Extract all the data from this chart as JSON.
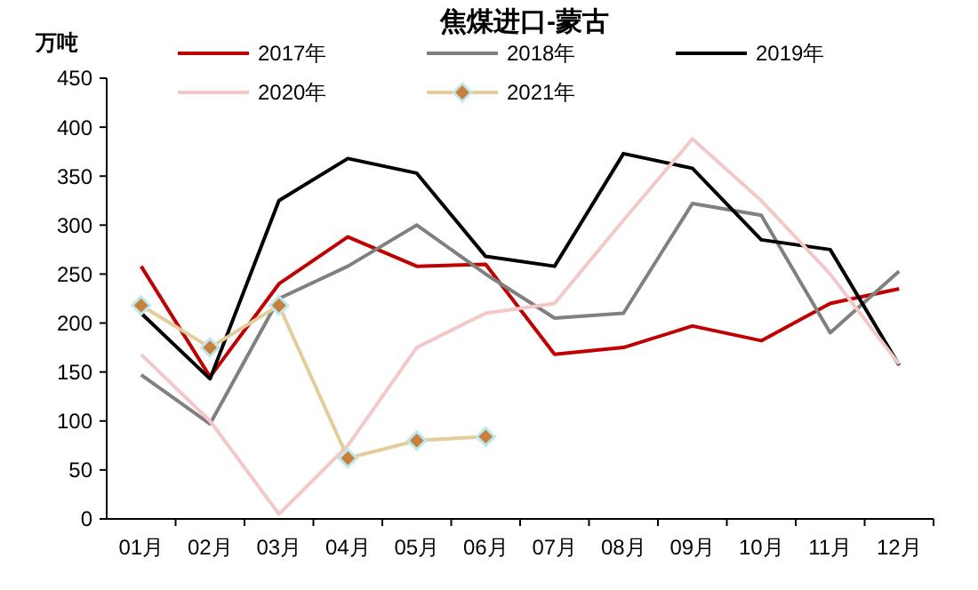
{
  "chart_data": {
    "type": "line",
    "title": "焦煤进口-蒙古",
    "ylabel": "万吨",
    "categories": [
      "01月",
      "02月",
      "03月",
      "04月",
      "05月",
      "06月",
      "07月",
      "08月",
      "09月",
      "10月",
      "11月",
      "12月"
    ],
    "ylim": [
      0,
      450
    ],
    "yticks": [
      0,
      50,
      100,
      150,
      200,
      250,
      300,
      350,
      400,
      450
    ],
    "grid": false,
    "legend": "top",
    "series": [
      {
        "name": "2017年",
        "color": "#c00000",
        "values": [
          258,
          145,
          240,
          288,
          258,
          260,
          168,
          175,
          197,
          182,
          220,
          235
        ]
      },
      {
        "name": "2018年",
        "color": "#808080",
        "values": [
          147,
          97,
          225,
          258,
          300,
          250,
          205,
          210,
          322,
          310,
          190,
          253
        ]
      },
      {
        "name": "2019年",
        "color": "#000000",
        "values": [
          210,
          143,
          325,
          368,
          353,
          268,
          258,
          373,
          358,
          285,
          275,
          157
        ]
      },
      {
        "name": "2020年",
        "color": "#f2c8c8",
        "values": [
          168,
          100,
          5,
          75,
          175,
          210,
          220,
          305,
          388,
          325,
          250,
          158
        ]
      },
      {
        "name": "2021年",
        "color": "#e3cc9a",
        "marker": "diamond",
        "values": [
          218,
          175,
          218,
          62,
          80,
          84,
          null,
          null,
          null,
          null,
          null,
          null
        ]
      }
    ]
  }
}
